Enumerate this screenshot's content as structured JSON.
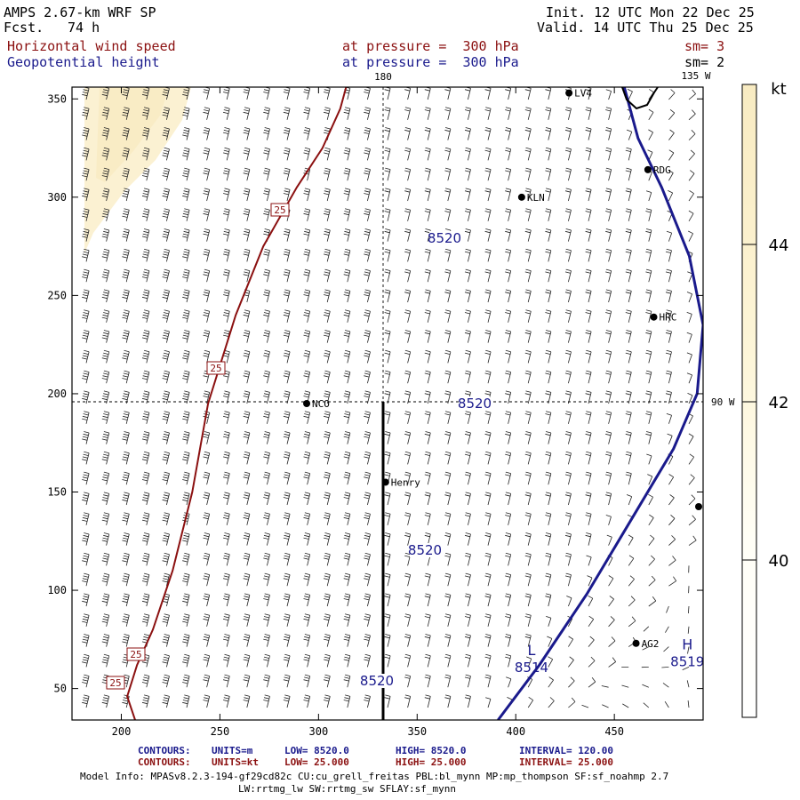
{
  "header": {
    "model": "AMPS 2.67-km WRF SP",
    "fcst_label": "Fcst.",
    "fcst_value": "74 h",
    "init": "Init. 12 UTC Mon 22 Dec 25",
    "valid": "Valid. 14 UTC Thu 25 Dec 25",
    "field1": "Horizontal wind speed",
    "field2": "Geopotential height",
    "pressure1": "at pressure =  300 hPa",
    "pressure2": "at pressure =  300 hPa",
    "sm1": "sm= 3",
    "sm2": "sm= 2"
  },
  "chart_data": {
    "type": "contour",
    "xlabel": "",
    "ylabel": "",
    "xlim": [
      175,
      495
    ],
    "ylim": [
      34,
      356
    ],
    "x_ticks": [
      "200",
      "250",
      "300",
      "350",
      "400",
      "450"
    ],
    "y_ticks": [
      "50",
      "100",
      "150",
      "200",
      "250",
      "300",
      "350"
    ],
    "meridian_labels": [
      "180",
      "135 W",
      "90 W"
    ],
    "height_contour": {
      "units": "m",
      "label": "8520",
      "points": [
        [
          391,
          34
        ],
        [
          412,
          62
        ],
        [
          436,
          98
        ],
        [
          458,
          135
        ],
        [
          480,
          172
        ],
        [
          492,
          200
        ],
        [
          495,
          235
        ],
        [
          488,
          270
        ],
        [
          474,
          305
        ],
        [
          462,
          330
        ],
        [
          455,
          356
        ]
      ]
    },
    "wind_contour": {
      "units": "kt",
      "label": "25",
      "points": [
        [
          207,
          34
        ],
        [
          203,
          46
        ],
        [
          208,
          62
        ],
        [
          216,
          80
        ],
        [
          226,
          110
        ],
        [
          236,
          150
        ],
        [
          244,
          195
        ],
        [
          258,
          240
        ],
        [
          272,
          275
        ],
        [
          289,
          305
        ],
        [
          302,
          325
        ],
        [
          311,
          345
        ],
        [
          314,
          356
        ]
      ]
    },
    "pressure_centers": [
      {
        "symbol": "L",
        "value": "8514",
        "x": 408,
        "y": 67
      },
      {
        "symbol": "H",
        "value": "8519",
        "x": 487,
        "y": 70
      }
    ],
    "stations": [
      {
        "name": "NCO",
        "x": 294,
        "y": 195
      },
      {
        "name": "Henry",
        "x": 334,
        "y": 155
      },
      {
        "name": "KLN",
        "x": 403,
        "y": 300
      },
      {
        "name": "RDG",
        "x": 467,
        "y": 314
      },
      {
        "name": "HRC",
        "x": 470,
        "y": 239
      },
      {
        "name": "AG2",
        "x": 461,
        "y": 73
      },
      {
        "name": "LV4",
        "x": 427,
        "y": 353
      }
    ],
    "colorbar": {
      "unit": "kt",
      "ticks": [
        "40",
        "42",
        "44"
      ]
    }
  },
  "footer": {
    "row1": {
      "label": "CONTOURS:",
      "units": "UNITS=m",
      "low": "LOW=  8520.0",
      "high": "HIGH=  8520.0",
      "interval": "INTERVAL=    120.00"
    },
    "row2": {
      "label": "CONTOURS:",
      "units": "UNITS=kt",
      "low": "LOW=  25.000",
      "high": "HIGH=  25.000",
      "interval": "INTERVAL=    25.000"
    },
    "model_info": "Model Info: MPASv8.2.3-194-gf29cd82c CU:cu_grell_freitas PBL:bl_mynn MP:mp_thompson SF:sf_noahmp 2.7",
    "model_info2": "LW:rrtmg_lw SW:rrtmg_sw SFLAY:sf_mynn"
  }
}
